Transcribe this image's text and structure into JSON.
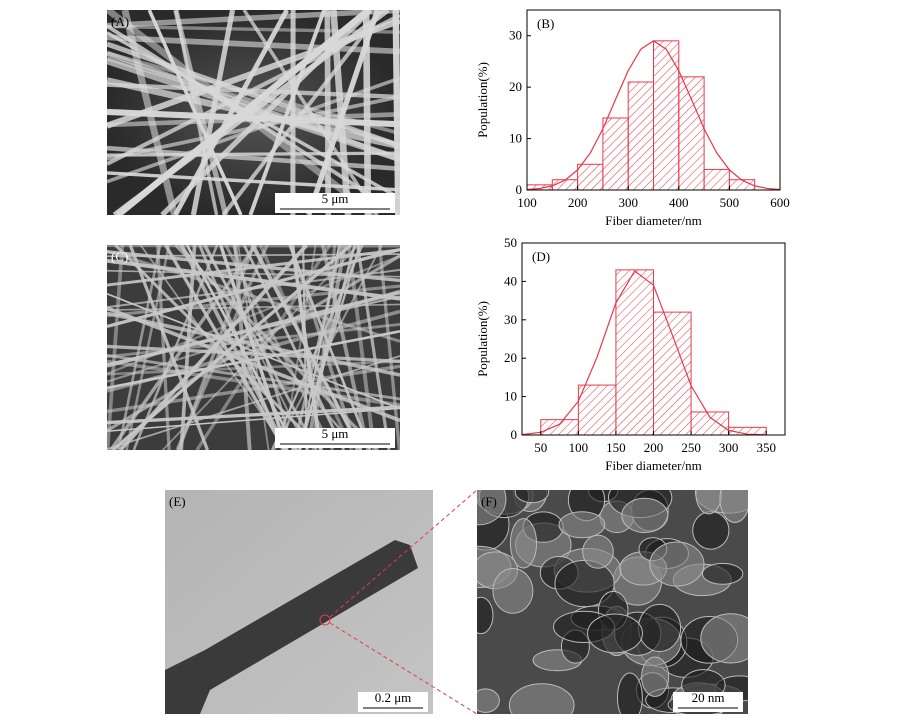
{
  "panels": [
    {
      "label": "(A)",
      "scale_bar": "5 μm"
    },
    {
      "label": "(C)",
      "scale_bar": "5 μm"
    },
    {
      "label": "(E)",
      "scale_bar": "0.2 μm"
    },
    {
      "label": "(F)",
      "scale_bar": "20 nm"
    }
  ],
  "chart_data": [
    {
      "type": "histogram",
      "panel_label": "(B)",
      "xlabel": "Fiber diameter/nm",
      "ylabel": "Population(%)",
      "bins": [
        100,
        150,
        200,
        250,
        300,
        350,
        400,
        450,
        500,
        550
      ],
      "values": [
        1,
        2,
        5,
        14,
        21,
        29,
        22,
        4,
        2
      ],
      "color": "#e8394a",
      "xlim": [
        100,
        600
      ],
      "ylim": [
        0,
        35
      ],
      "xticks": [
        100,
        200,
        300,
        400,
        500,
        600
      ],
      "yticks": [
        0,
        10,
        20,
        30
      ],
      "fit": {
        "x": [
          100,
          125,
          150,
          175,
          200,
          225,
          250,
          275,
          300,
          325,
          350,
          375,
          400,
          425,
          450,
          475,
          500,
          525,
          550,
          575,
          600
        ],
        "values": [
          0.1,
          0.3,
          0.8,
          1.9,
          3.9,
          7.2,
          11.9,
          17.6,
          23.2,
          27.4,
          29,
          27.4,
          23.2,
          17.6,
          11.9,
          7.2,
          3.9,
          1.9,
          0.8,
          0.3,
          0.1
        ]
      }
    },
    {
      "type": "histogram",
      "panel_label": "(D)",
      "xlabel": "Fiber diameter/nm",
      "ylabel": "Population(%)",
      "bins": [
        50,
        100,
        150,
        200,
        250,
        300,
        350
      ],
      "values": [
        4,
        13,
        43,
        32,
        6,
        2
      ],
      "color": "#e8394a",
      "xlim": [
        25,
        375
      ],
      "ylim": [
        0,
        50
      ],
      "xticks": [
        50,
        100,
        150,
        200,
        250,
        300,
        350
      ],
      "yticks": [
        0,
        10,
        20,
        30,
        40,
        50
      ],
      "fit": {
        "x": [
          25,
          50,
          75,
          100,
          125,
          150,
          175,
          200,
          225,
          250,
          275,
          300,
          325,
          350
        ],
        "values": [
          0.1,
          0.7,
          2.8,
          8.8,
          20.3,
          34.4,
          42.7,
          39,
          26.1,
          12.8,
          4.6,
          1.2,
          0.2,
          0.03
        ]
      }
    }
  ]
}
